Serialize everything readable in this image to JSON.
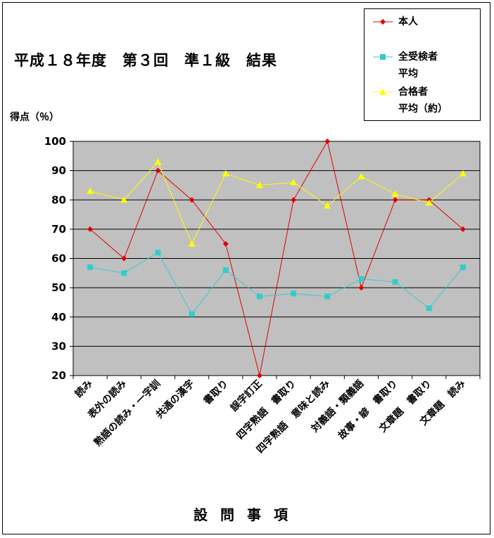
{
  "chart_data": {
    "type": "line",
    "title": "平成１８年度　第３回　準１級　結果",
    "ylabel": "得点（％）",
    "xlabel": "設問事項",
    "ylim": [
      20,
      100
    ],
    "yticks": [
      20,
      30,
      40,
      50,
      60,
      70,
      80,
      90,
      100
    ],
    "grid": true,
    "legend_position": "top-right",
    "categories": [
      "読み",
      "表外の読み",
      "熟語の読み・一字訓",
      "共通の漢字",
      "書取り",
      "誤字訂正",
      "四字熟語　書取り",
      "四字熟語　意味と読み",
      "対義語・類義語",
      "故事・諺　書取り",
      "文章題　書取り",
      "文章題　読み"
    ],
    "series": [
      {
        "name": "本人",
        "color": "#e00000",
        "marker": "diamond",
        "values": [
          70,
          60,
          90,
          80,
          65,
          20,
          80,
          100,
          50,
          80,
          80,
          70
        ]
      },
      {
        "name": "全受検者平均",
        "color": "#33cccc",
        "marker": "square",
        "values": [
          57,
          55,
          62,
          41,
          56,
          47,
          48,
          47,
          53,
          52,
          43,
          57
        ]
      },
      {
        "name": "合格者平均（約）",
        "color": "#ffff00",
        "marker": "triangle",
        "values": [
          83,
          80,
          93,
          65,
          89,
          85,
          86,
          78,
          88,
          82,
          79,
          89
        ]
      }
    ]
  },
  "legend": {
    "items": [
      {
        "line1": "本人",
        "line2": ""
      },
      {
        "line1": "全受検者",
        "line2": "平均"
      },
      {
        "line1": "合格者",
        "line2": "平均（約）"
      }
    ]
  }
}
